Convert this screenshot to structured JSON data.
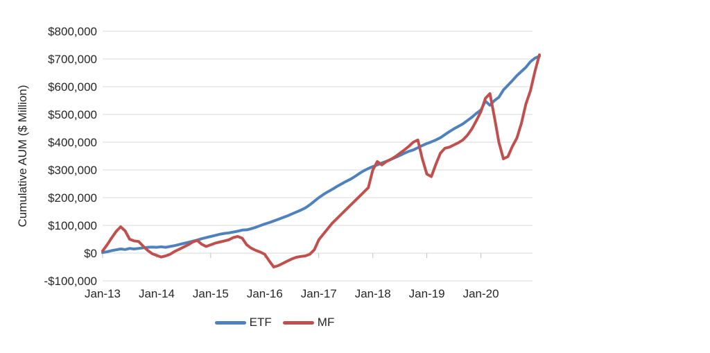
{
  "chart_data": {
    "type": "line",
    "title": "",
    "xlabel": "",
    "ylabel": "Cumulative AUM ($ Million)",
    "ylim": [
      -100000,
      800000
    ],
    "grid": "horizontal",
    "legend_position": "bottom-center",
    "background_color": "#ffffff",
    "gridline_color": "#d9d9d9",
    "tick_mark_color": "#bfbfbf",
    "text_color": "#262626",
    "x_unit": "month",
    "x_start_label": "Jan-13",
    "n_points": 98,
    "y_ticks": [
      {
        "value": 800000,
        "label": "$800,000"
      },
      {
        "value": 700000,
        "label": "$700,000"
      },
      {
        "value": 600000,
        "label": "$600,000"
      },
      {
        "value": 500000,
        "label": "$500,000"
      },
      {
        "value": 400000,
        "label": "$400,000"
      },
      {
        "value": 300000,
        "label": "$300,000"
      },
      {
        "value": 200000,
        "label": "$200,000"
      },
      {
        "value": 100000,
        "label": "$100,000"
      },
      {
        "value": 0,
        "label": "$0"
      },
      {
        "value": -100000,
        "label": "-$100,000"
      }
    ],
    "x_ticks": [
      {
        "index": 0,
        "label": "Jan-13"
      },
      {
        "index": 12,
        "label": "Jan-14"
      },
      {
        "index": 24,
        "label": "Jan-15"
      },
      {
        "index": 36,
        "label": "Jan-16"
      },
      {
        "index": 48,
        "label": "Jan-17"
      },
      {
        "index": 60,
        "label": "Jan-18"
      },
      {
        "index": 72,
        "label": "Jan-19"
      },
      {
        "index": 84,
        "label": "Jan-20"
      }
    ],
    "series": [
      {
        "name": "ETF",
        "color": "#4f81bd",
        "values": [
          2000,
          5000,
          9000,
          12000,
          15000,
          13000,
          17000,
          15000,
          17000,
          19000,
          21000,
          22000,
          21000,
          23000,
          21000,
          24000,
          27000,
          31000,
          35000,
          39000,
          43000,
          47000,
          52000,
          56000,
          60000,
          64000,
          68000,
          71000,
          73000,
          76000,
          79000,
          83000,
          84000,
          88000,
          93000,
          99000,
          105000,
          110000,
          116000,
          122000,
          128000,
          134000,
          141000,
          148000,
          155000,
          163000,
          174000,
          187000,
          200000,
          211000,
          221000,
          230000,
          240000,
          249000,
          258000,
          266000,
          276000,
          287000,
          297000,
          305000,
          312000,
          318000,
          325000,
          331000,
          338000,
          345000,
          352000,
          360000,
          367000,
          372000,
          380000,
          388000,
          395000,
          401000,
          408000,
          416000,
          427000,
          438000,
          448000,
          457000,
          466000,
          478000,
          490000,
          504000,
          516000,
          548000,
          533000,
          550000,
          562000,
          588000,
          605000,
          622000,
          640000,
          655000,
          670000,
          690000,
          703000,
          710000
        ]
      },
      {
        "name": "MF",
        "color": "#c0504d",
        "values": [
          8000,
          30000,
          55000,
          78000,
          95000,
          80000,
          50000,
          44000,
          42000,
          25000,
          10000,
          -2000,
          -8000,
          -14000,
          -10000,
          -4000,
          6000,
          14000,
          22000,
          30000,
          40000,
          46000,
          32000,
          24000,
          30000,
          36000,
          40000,
          44000,
          48000,
          56000,
          60000,
          54000,
          30000,
          18000,
          10000,
          4000,
          -4000,
          -28000,
          -50000,
          -45000,
          -37000,
          -29000,
          -21000,
          -15000,
          -12000,
          -10000,
          -4000,
          12000,
          48000,
          68000,
          88000,
          108000,
          124000,
          140000,
          156000,
          172000,
          188000,
          204000,
          220000,
          236000,
          300000,
          330000,
          318000,
          330000,
          338000,
          348000,
          360000,
          372000,
          385000,
          400000,
          408000,
          340000,
          285000,
          276000,
          320000,
          360000,
          378000,
          382000,
          390000,
          398000,
          408000,
          425000,
          448000,
          478000,
          510000,
          558000,
          575000,
          490000,
          400000,
          340000,
          348000,
          385000,
          415000,
          468000,
          538000,
          585000,
          655000,
          715000
        ]
      }
    ]
  },
  "legend": {
    "etf_label": "ETF",
    "mf_label": "MF"
  }
}
